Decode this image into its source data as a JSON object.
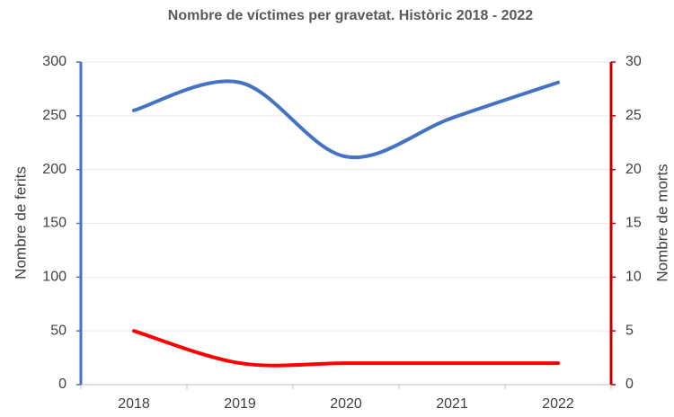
{
  "chart_data": {
    "type": "line",
    "title": "Nombre de víctimes per gravetat. Històric 2018  - 2022",
    "ylabel": "Nombre de ferits",
    "y2label": "Nombre de morts",
    "categories": [
      "2018",
      "2019",
      "2020",
      "2021",
      "2022"
    ],
    "series": [
      {
        "color": "#4472c4",
        "values": [
          255,
          281,
          212,
          248,
          281
        ]
      },
      {
        "color": "#ff0000",
        "axis": "y2",
        "values": [
          5,
          2,
          2,
          2,
          2
        ]
      }
    ],
    "ylim": [
      0,
      300
    ],
    "yticks": [
      0,
      50,
      100,
      150,
      200,
      250,
      300
    ],
    "y2lim": [
      0,
      30
    ],
    "y2ticks": [
      0,
      5,
      10,
      15,
      20,
      25,
      30
    ],
    "yaxis_color": "#4472c4",
    "y2axis_color": "#c00000",
    "smooth": true,
    "grid": true
  }
}
